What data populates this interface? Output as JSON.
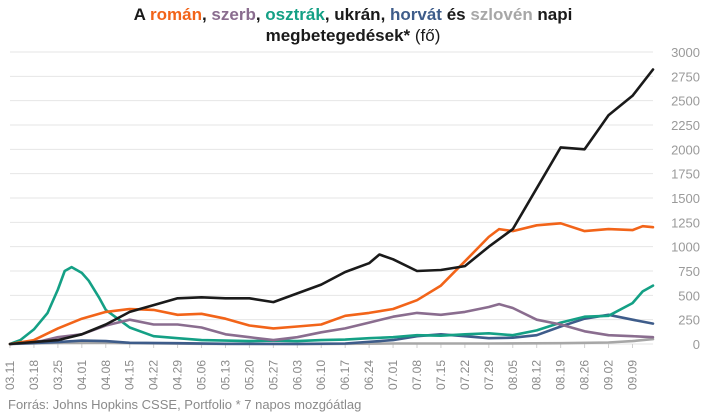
{
  "title": {
    "line1": [
      {
        "text": "A ",
        "color": "#1a1a1a"
      },
      {
        "text": "román",
        "color": "#f26419"
      },
      {
        "text": ", ",
        "color": "#1a1a1a"
      },
      {
        "text": "szerb",
        "color": "#8a6d8f"
      },
      {
        "text": ", ",
        "color": "#1a1a1a"
      },
      {
        "text": "osztrák",
        "color": "#14a085"
      },
      {
        "text": ", ukrán, ",
        "color": "#1a1a1a"
      },
      {
        "text": "horvát",
        "color": "#3e5c8a"
      },
      {
        "text": " és ",
        "color": "#1a1a1a"
      },
      {
        "text": "szlovén",
        "color": "#a7a7a7"
      },
      {
        "text": " napi",
        "color": "#1a1a1a"
      }
    ],
    "line2_bold": "megbetegedések*",
    "line2_normal": " (fő)"
  },
  "source": "Forrás: Johns Hopkins CSSE, Portfolio   * 7 napos mozgóátlag",
  "chart_data": {
    "type": "line",
    "x_start": "2020-03-11",
    "x_end": "2020-09-15",
    "x_ticks": [
      "03.11",
      "03.18",
      "03.25",
      "04.01",
      "04.08",
      "04.15",
      "04.22",
      "04.29",
      "05.06",
      "05.13",
      "05.20",
      "05.27",
      "06.03",
      "06.10",
      "06.17",
      "06.24",
      "07.01",
      "07.08",
      "07.15",
      "07.22",
      "07.29",
      "08.05",
      "08.12",
      "08.19",
      "08.26",
      "09.02",
      "09.09"
    ],
    "ylim": [
      0,
      3000
    ],
    "y_ticks": [
      0,
      250,
      500,
      750,
      1000,
      1250,
      1500,
      1750,
      2000,
      2250,
      2500,
      2750,
      3000
    ],
    "grid": true,
    "series": [
      {
        "name": "szlovén",
        "color": "#a7a7a7",
        "points": [
          [
            "03.11",
            0
          ],
          [
            "03.25",
            10
          ],
          [
            "04.08",
            12
          ],
          [
            "05.06",
            2
          ],
          [
            "06.10",
            0
          ],
          [
            "07.01",
            5
          ],
          [
            "07.29",
            5
          ],
          [
            "08.19",
            8
          ],
          [
            "09.02",
            15
          ],
          [
            "09.09",
            30
          ],
          [
            "09.15",
            50
          ]
        ]
      },
      {
        "name": "horvát",
        "color": "#3e5c8a",
        "points": [
          [
            "03.11",
            0
          ],
          [
            "03.25",
            20
          ],
          [
            "04.01",
            35
          ],
          [
            "04.08",
            30
          ],
          [
            "04.15",
            12
          ],
          [
            "04.29",
            8
          ],
          [
            "05.13",
            2
          ],
          [
            "06.03",
            1
          ],
          [
            "06.17",
            5
          ],
          [
            "07.01",
            40
          ],
          [
            "07.08",
            80
          ],
          [
            "07.15",
            100
          ],
          [
            "07.22",
            80
          ],
          [
            "07.29",
            60
          ],
          [
            "08.05",
            65
          ],
          [
            "08.12",
            90
          ],
          [
            "08.19",
            180
          ],
          [
            "08.26",
            260
          ],
          [
            "09.02",
            300
          ],
          [
            "09.09",
            250
          ],
          [
            "09.15",
            210
          ]
        ]
      },
      {
        "name": "osztrák",
        "color": "#14a085",
        "points": [
          [
            "03.11",
            0
          ],
          [
            "03.14",
            40
          ],
          [
            "03.18",
            150
          ],
          [
            "03.22",
            320
          ],
          [
            "03.25",
            560
          ],
          [
            "03.27",
            750
          ],
          [
            "03.29",
            790
          ],
          [
            "04.01",
            730
          ],
          [
            "04.03",
            650
          ],
          [
            "04.06",
            480
          ],
          [
            "04.08",
            350
          ],
          [
            "04.15",
            170
          ],
          [
            "04.22",
            80
          ],
          [
            "04.29",
            60
          ],
          [
            "05.06",
            40
          ],
          [
            "05.13",
            35
          ],
          [
            "05.20",
            30
          ],
          [
            "05.27",
            35
          ],
          [
            "06.03",
            30
          ],
          [
            "06.10",
            40
          ],
          [
            "06.17",
            45
          ],
          [
            "06.24",
            60
          ],
          [
            "07.01",
            70
          ],
          [
            "07.08",
            90
          ],
          [
            "07.15",
            85
          ],
          [
            "07.22",
            100
          ],
          [
            "07.29",
            110
          ],
          [
            "08.05",
            90
          ],
          [
            "08.12",
            140
          ],
          [
            "08.19",
            220
          ],
          [
            "08.26",
            280
          ],
          [
            "09.02",
            290
          ],
          [
            "09.09",
            420
          ],
          [
            "09.12",
            540
          ],
          [
            "09.15",
            600
          ]
        ]
      },
      {
        "name": "szerb",
        "color": "#8a6d8f",
        "points": [
          [
            "03.11",
            0
          ],
          [
            "03.20",
            30
          ],
          [
            "03.25",
            70
          ],
          [
            "04.01",
            100
          ],
          [
            "04.08",
            190
          ],
          [
            "04.15",
            250
          ],
          [
            "04.22",
            200
          ],
          [
            "04.29",
            200
          ],
          [
            "05.06",
            170
          ],
          [
            "05.13",
            100
          ],
          [
            "05.20",
            70
          ],
          [
            "05.27",
            40
          ],
          [
            "06.03",
            70
          ],
          [
            "06.10",
            120
          ],
          [
            "06.17",
            160
          ],
          [
            "06.24",
            220
          ],
          [
            "07.01",
            280
          ],
          [
            "07.08",
            320
          ],
          [
            "07.15",
            300
          ],
          [
            "07.22",
            330
          ],
          [
            "07.29",
            380
          ],
          [
            "08.01",
            410
          ],
          [
            "08.05",
            370
          ],
          [
            "08.12",
            250
          ],
          [
            "08.19",
            200
          ],
          [
            "08.26",
            130
          ],
          [
            "09.02",
            90
          ],
          [
            "09.09",
            80
          ],
          [
            "09.15",
            70
          ]
        ]
      },
      {
        "name": "román",
        "color": "#f26419",
        "points": [
          [
            "03.11",
            0
          ],
          [
            "03.18",
            40
          ],
          [
            "03.25",
            160
          ],
          [
            "04.01",
            260
          ],
          [
            "04.08",
            330
          ],
          [
            "04.15",
            360
          ],
          [
            "04.22",
            350
          ],
          [
            "04.29",
            300
          ],
          [
            "05.06",
            310
          ],
          [
            "05.13",
            260
          ],
          [
            "05.20",
            190
          ],
          [
            "05.27",
            160
          ],
          [
            "06.03",
            180
          ],
          [
            "06.10",
            200
          ],
          [
            "06.17",
            290
          ],
          [
            "06.24",
            320
          ],
          [
            "07.01",
            360
          ],
          [
            "07.08",
            450
          ],
          [
            "07.15",
            600
          ],
          [
            "07.22",
            850
          ],
          [
            "07.29",
            1100
          ],
          [
            "08.01",
            1180
          ],
          [
            "08.05",
            1160
          ],
          [
            "08.12",
            1220
          ],
          [
            "08.19",
            1240
          ],
          [
            "08.26",
            1160
          ],
          [
            "09.02",
            1180
          ],
          [
            "09.09",
            1170
          ],
          [
            "09.12",
            1210
          ],
          [
            "09.15",
            1200
          ]
        ]
      },
      {
        "name": "ukrán",
        "color": "#1a1a1a",
        "points": [
          [
            "03.11",
            0
          ],
          [
            "03.25",
            40
          ],
          [
            "04.01",
            100
          ],
          [
            "04.08",
            200
          ],
          [
            "04.15",
            330
          ],
          [
            "04.22",
            400
          ],
          [
            "04.29",
            470
          ],
          [
            "05.06",
            480
          ],
          [
            "05.13",
            470
          ],
          [
            "05.20",
            470
          ],
          [
            "05.27",
            430
          ],
          [
            "06.03",
            520
          ],
          [
            "06.10",
            610
          ],
          [
            "06.17",
            740
          ],
          [
            "06.24",
            830
          ],
          [
            "06.27",
            920
          ],
          [
            "07.01",
            870
          ],
          [
            "07.08",
            750
          ],
          [
            "07.15",
            760
          ],
          [
            "07.22",
            800
          ],
          [
            "07.29",
            1000
          ],
          [
            "08.05",
            1180
          ],
          [
            "08.12",
            1600
          ],
          [
            "08.19",
            2020
          ],
          [
            "08.26",
            2000
          ],
          [
            "09.02",
            2350
          ],
          [
            "09.09",
            2550
          ],
          [
            "09.15",
            2820
          ]
        ]
      }
    ]
  }
}
